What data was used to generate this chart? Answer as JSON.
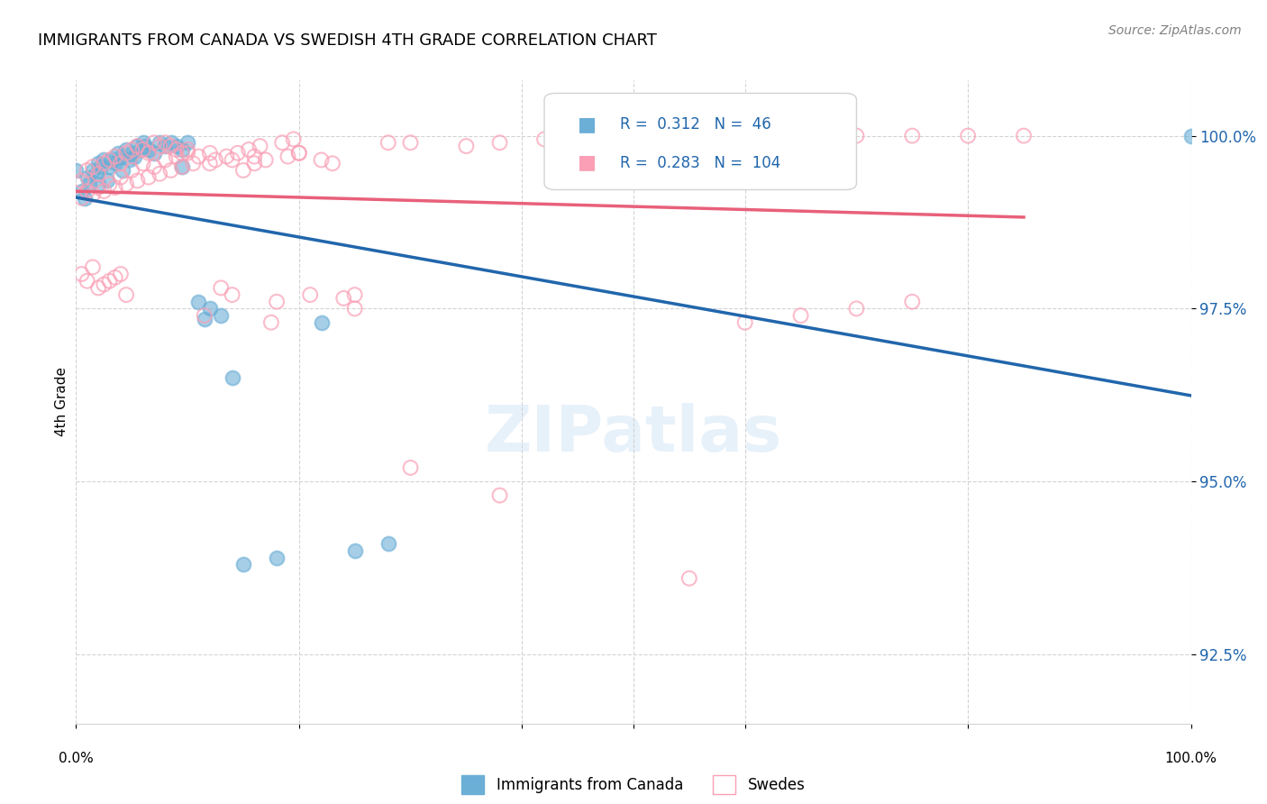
{
  "title": "IMMIGRANTS FROM CANADA VS SWEDISH 4TH GRADE CORRELATION CHART",
  "source": "Source: ZipAtlas.com",
  "ylabel": "4th Grade",
  "y_ticks": [
    92.5,
    95.0,
    97.5,
    100.0
  ],
  "y_tick_labels": [
    "92.5%",
    "95.0%",
    "97.5%",
    "100.0%"
  ],
  "xlim": [
    0.0,
    1.0
  ],
  "ylim": [
    91.5,
    100.8
  ],
  "blue_color": "#6baed6",
  "pink_color": "#fa9fb5",
  "blue_line_color": "#2166ac",
  "pink_line_color": "#e8607a",
  "legend_blue_label": "Immigrants from Canada",
  "legend_pink_label": "Swedes",
  "R_blue": 0.312,
  "N_blue": 46,
  "R_pink": 0.283,
  "N_pink": 104,
  "blue_scatter_x": [
    0.0,
    0.02,
    0.03,
    0.025,
    0.04,
    0.05,
    0.01,
    0.015,
    0.02,
    0.035,
    0.045,
    0.055,
    0.06,
    0.065,
    0.07,
    0.075,
    0.08,
    0.085,
    0.09,
    0.095,
    0.1,
    0.11,
    0.12,
    0.13,
    0.14,
    0.15,
    0.18,
    0.22,
    0.25,
    0.28,
    0.005,
    0.008,
    0.012,
    0.018,
    0.022,
    0.028,
    0.032,
    0.038,
    0.042,
    0.048,
    0.052,
    0.058,
    0.062,
    0.095,
    0.115,
    1.0
  ],
  "blue_scatter_y": [
    99.5,
    99.6,
    99.55,
    99.65,
    99.7,
    99.75,
    99.4,
    99.5,
    99.3,
    99.6,
    99.8,
    99.85,
    99.9,
    99.8,
    99.75,
    99.9,
    99.85,
    99.9,
    99.85,
    99.8,
    99.9,
    97.6,
    97.5,
    97.4,
    96.5,
    93.8,
    93.9,
    97.3,
    94.0,
    94.1,
    99.2,
    99.1,
    99.3,
    99.45,
    99.55,
    99.35,
    99.65,
    99.75,
    99.5,
    99.65,
    99.7,
    99.8,
    99.85,
    99.55,
    97.35,
    100.0
  ],
  "pink_scatter_x": [
    0.0,
    0.005,
    0.01,
    0.015,
    0.02,
    0.025,
    0.03,
    0.035,
    0.04,
    0.045,
    0.05,
    0.055,
    0.06,
    0.065,
    0.07,
    0.075,
    0.08,
    0.085,
    0.09,
    0.095,
    0.1,
    0.11,
    0.12,
    0.13,
    0.14,
    0.15,
    0.16,
    0.17,
    0.18,
    0.19,
    0.2,
    0.21,
    0.22,
    0.23,
    0.24,
    0.25,
    0.28,
    0.3,
    0.35,
    0.38,
    0.42,
    0.48,
    0.5,
    0.55,
    0.6,
    0.65,
    0.7,
    0.75,
    0.8,
    0.85,
    0.01,
    0.02,
    0.03,
    0.04,
    0.05,
    0.06,
    0.07,
    0.08,
    0.09,
    0.1,
    0.12,
    0.14,
    0.16,
    0.2,
    0.25,
    0.3,
    0.38,
    0.45,
    0.55,
    0.65,
    0.005,
    0.015,
    0.025,
    0.035,
    0.045,
    0.055,
    0.065,
    0.075,
    0.085,
    0.095,
    0.105,
    0.115,
    0.125,
    0.135,
    0.145,
    0.155,
    0.165,
    0.175,
    0.185,
    0.195,
    0.005,
    0.01,
    0.015,
    0.02,
    0.025,
    0.03,
    0.035,
    0.04,
    0.045,
    0.55,
    0.6,
    0.65,
    0.7,
    0.75
  ],
  "pink_scatter_y": [
    99.3,
    99.35,
    99.5,
    99.55,
    99.45,
    99.6,
    99.65,
    99.7,
    99.6,
    99.75,
    99.8,
    99.85,
    99.8,
    99.75,
    99.9,
    99.85,
    99.9,
    99.85,
    99.8,
    99.75,
    99.8,
    99.7,
    99.75,
    97.8,
    97.7,
    99.5,
    99.6,
    99.65,
    97.6,
    99.7,
    99.75,
    97.7,
    99.65,
    99.6,
    97.65,
    97.7,
    99.9,
    99.9,
    99.85,
    99.9,
    99.95,
    100.0,
    100.0,
    100.0,
    100.0,
    100.0,
    100.0,
    100.0,
    100.0,
    100.0,
    99.2,
    99.25,
    99.3,
    99.4,
    99.5,
    99.6,
    99.55,
    99.65,
    99.7,
    99.75,
    99.6,
    99.65,
    99.7,
    99.75,
    97.5,
    95.2,
    94.8,
    99.8,
    99.85,
    99.9,
    99.1,
    99.15,
    99.2,
    99.25,
    99.3,
    99.35,
    99.4,
    99.45,
    99.5,
    99.55,
    99.6,
    97.4,
    99.65,
    99.7,
    99.75,
    99.8,
    99.85,
    97.3,
    99.9,
    99.95,
    98.0,
    97.9,
    98.1,
    97.8,
    97.85,
    97.9,
    97.95,
    98.0,
    97.7,
    93.6,
    97.3,
    97.4,
    97.5,
    97.6
  ]
}
